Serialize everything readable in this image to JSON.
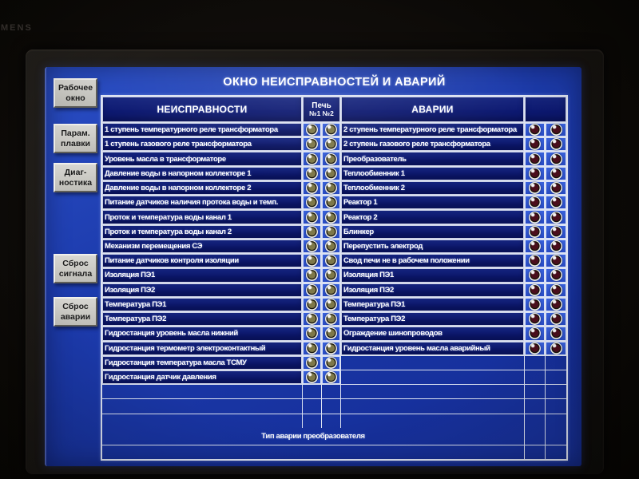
{
  "bezel": {
    "brand_fragment": "MENS"
  },
  "screen": {
    "title": "ОКНО НЕИСПРАВНОСТЕЙ И АВАРИЙ",
    "sidebar": {
      "buttons": [
        {
          "label": "Рабочее\nокно"
        },
        {
          "label": "Парам.\nплавки"
        },
        {
          "label": "Диаг-\nностика"
        },
        {
          "label": "Сброс\nсигнала"
        },
        {
          "label": "Сброс\nаварии"
        }
      ]
    }
  },
  "table": {
    "headers": {
      "faults": "НЕИСПРАВНОСТИ",
      "furnace": "Печь",
      "furnace_sub": "№1 №2",
      "alarms": "АВАРИИ"
    },
    "rows": [
      {
        "fault": "1 ступень температурного реле трансформатора",
        "furnace_lamps": true,
        "alarm": "2 ступень температурного реле трансформатора",
        "alarm_lamps": true
      },
      {
        "fault": "1 ступень газового реле трансформатора",
        "furnace_lamps": true,
        "alarm": "2 ступень газового реле трансформатора",
        "alarm_lamps": true
      },
      {
        "fault": "Уровень масла в трансформаторе",
        "furnace_lamps": true,
        "alarm": "Преобразователь",
        "alarm_lamps": true
      },
      {
        "fault": "Давление воды в напорном коллекторе 1",
        "furnace_lamps": true,
        "alarm": "Теплообменник 1",
        "alarm_lamps": true
      },
      {
        "fault": "Давление воды в напорном коллекторе 2",
        "furnace_lamps": true,
        "alarm": "Теплообменник 2",
        "alarm_lamps": true
      },
      {
        "fault": "Питание датчиков наличия протока воды и темп.",
        "furnace_lamps": true,
        "alarm": "Реактор 1",
        "alarm_lamps": true
      },
      {
        "fault": "Проток и температура воды канал 1",
        "furnace_lamps": true,
        "alarm": "Реактор 2",
        "alarm_lamps": true
      },
      {
        "fault": "Проток и температура воды канал 2",
        "furnace_lamps": true,
        "alarm": "Блинкер",
        "alarm_lamps": true
      },
      {
        "fault": "Механизм перемещения СЭ",
        "furnace_lamps": true,
        "alarm": "Перепустить электрод",
        "alarm_lamps": true
      },
      {
        "fault": "Питание датчиков контроля изоляции",
        "furnace_lamps": true,
        "alarm": "Свод печи не в рабочем положении",
        "alarm_lamps": true
      },
      {
        "fault": "Изоляция ПЭ1",
        "furnace_lamps": true,
        "alarm": "Изоляция ПЭ1",
        "alarm_lamps": true
      },
      {
        "fault": "Изоляция ПЭ2",
        "furnace_lamps": true,
        "alarm": "Изоляция ПЭ2",
        "alarm_lamps": true
      },
      {
        "fault": "Температура ПЭ1",
        "furnace_lamps": true,
        "alarm": "Температура ПЭ1",
        "alarm_lamps": true
      },
      {
        "fault": "Температура ПЭ2",
        "furnace_lamps": true,
        "alarm": "Температура ПЭ2",
        "alarm_lamps": true
      },
      {
        "fault": "Гидростанция уровень масла нижний",
        "furnace_lamps": true,
        "alarm": "Ограждение шинопроводов",
        "alarm_lamps": true
      },
      {
        "fault": "Гидростанция термометр электроконтактный",
        "furnace_lamps": true,
        "alarm": "Гидростанция уровень масла аварийный",
        "alarm_lamps": true
      },
      {
        "fault": "Гидростанция температура масла ТСМУ",
        "furnace_lamps": true,
        "alarm": "",
        "alarm_lamps": false
      },
      {
        "fault": "Гидростанция датчик давления",
        "furnace_lamps": true,
        "alarm": "",
        "alarm_lamps": false
      },
      {
        "fault": "",
        "furnace_lamps": false,
        "alarm": "",
        "alarm_lamps": false
      },
      {
        "fault": "",
        "furnace_lamps": false,
        "alarm": "",
        "alarm_lamps": false
      },
      {
        "fault": "",
        "furnace_lamps": false,
        "alarm": "",
        "alarm_lamps": false
      }
    ],
    "footer": {
      "label": "Тип аварии преобразователя"
    }
  },
  "colors": {
    "screen_blue": "#1d3cae",
    "cell_navy": "#0c1870",
    "lamp_cell_blue": "#2f57d3",
    "grid_white": "#dde3f2",
    "furnace_lamp": "#7e7849",
    "alarm_lamp": "#4a0e1c",
    "button_gray": "#c9c8c3"
  }
}
